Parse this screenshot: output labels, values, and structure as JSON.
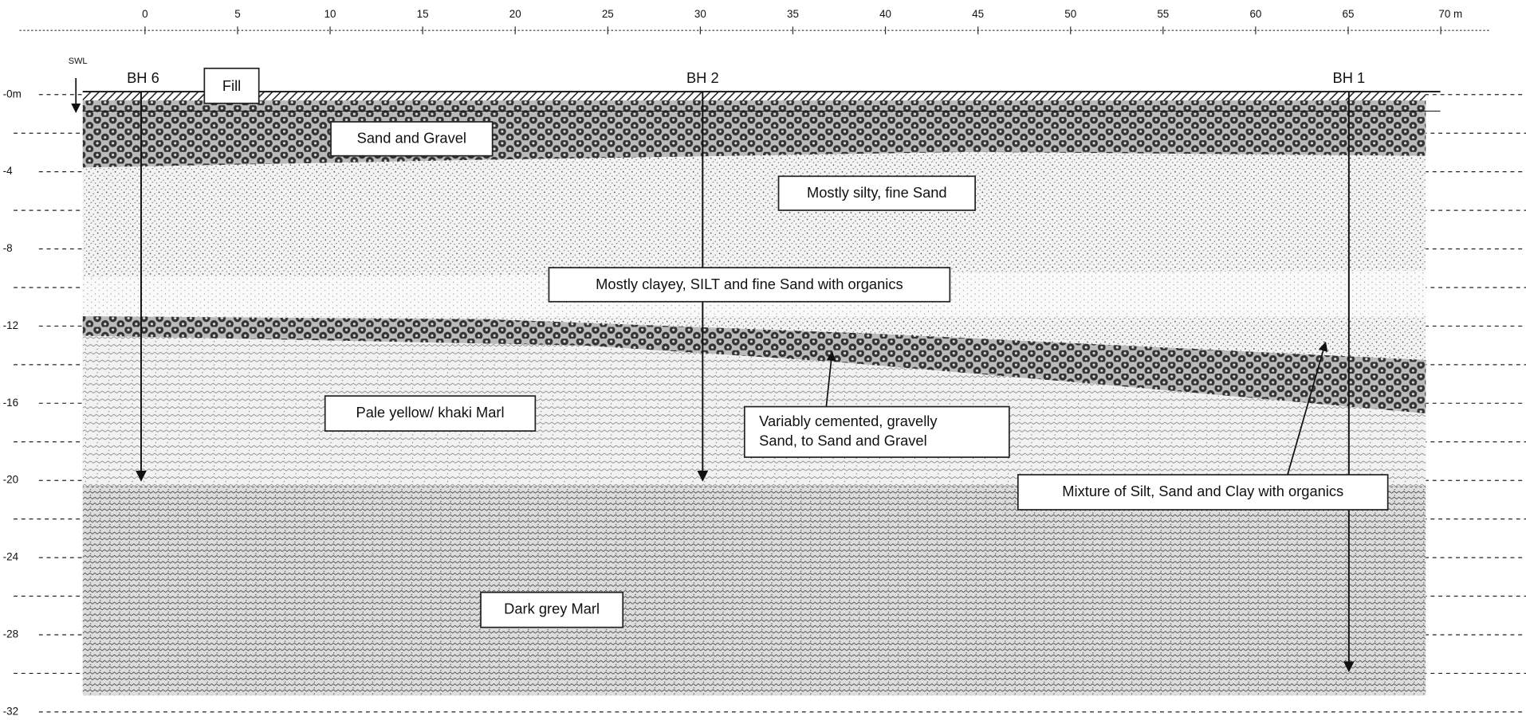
{
  "axis": {
    "distance_ticks": [
      "0",
      "5",
      "10",
      "15",
      "20",
      "25",
      "30",
      "35",
      "40",
      "45",
      "50",
      "55",
      "60",
      "65",
      "70 m"
    ],
    "depth_ticks": [
      "-0m",
      "-4",
      "-8",
      "-12",
      "-16",
      "-20",
      "-24",
      "-28",
      "-32"
    ]
  },
  "swl": "SWL",
  "boreholes": [
    {
      "label": "BH 6"
    },
    {
      "label": "BH 2"
    },
    {
      "label": "BH 1"
    }
  ],
  "labels": {
    "fill": "Fill",
    "sand_gravel": "Sand and Gravel",
    "silty_sand": "Mostly silty, fine Sand",
    "clayey_silt": "Mostly clayey, SILT and fine Sand with organics",
    "pale_marl": "Pale yellow/ khaki Marl",
    "cemented": [
      "Variably cemented, gravelly",
      "Sand, to Sand and Gravel"
    ],
    "mixture": "Mixture of Silt, Sand and Clay with organics",
    "dark_marl": "Dark grey Marl"
  }
}
